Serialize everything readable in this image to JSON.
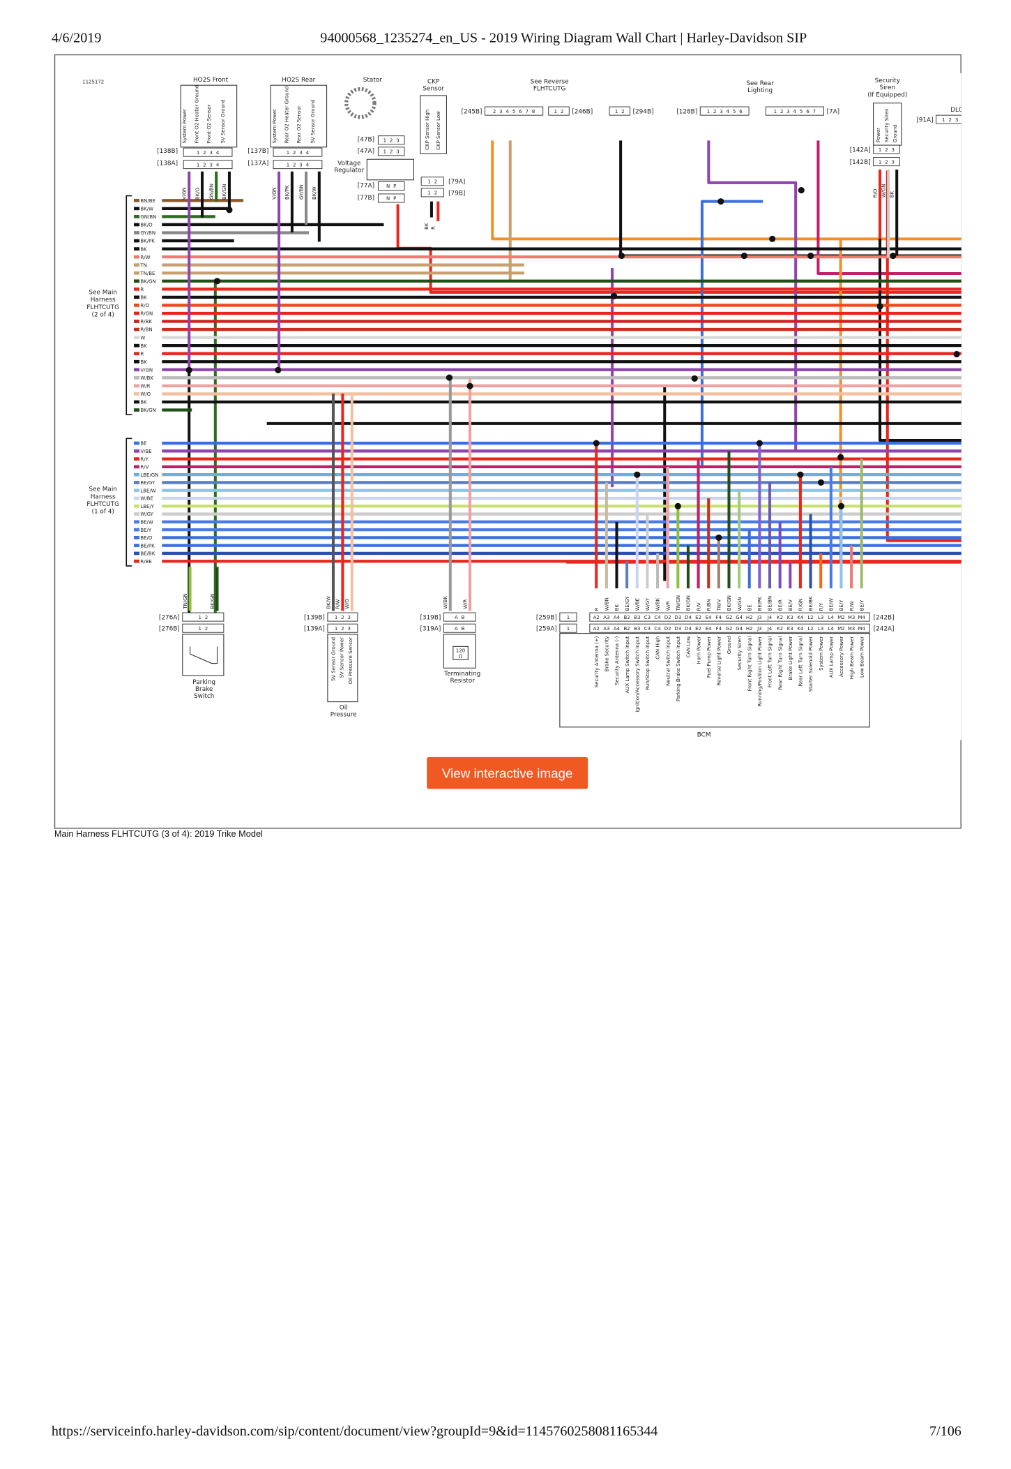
{
  "header": {
    "date": "4/6/2019",
    "title": "94000568_1235274_en_US - 2019 Wiring Diagram Wall Chart | Harley-Davidson SIP"
  },
  "diagram": {
    "id": "1125172",
    "components": [
      {
        "label": [
          "HO2S Front"
        ],
        "pin_functions": [
          "System Power",
          "Front O2 Heater Ground",
          "Front O2 Sensor",
          "5V Sensor Ground"
        ],
        "wires": [
          {
            "label": "V/GN",
            "color": "#8e44ad"
          },
          {
            "label": "BK/O",
            "color": "#111111"
          },
          {
            "label": "GN/BN",
            "color": "#2e6b1e"
          },
          {
            "label": "BK/GN",
            "color": "#111111"
          }
        ]
      },
      {
        "label": [
          "HO2S Rear"
        ],
        "pin_functions": [
          "System Power",
          "Rear O2 Heater Ground",
          "Rear O2 Sensor",
          "5V Sensor Ground"
        ],
        "wires": [
          {
            "label": "V/GN",
            "color": "#8e44ad"
          },
          {
            "label": "BK/PK",
            "color": "#111111"
          },
          {
            "label": "GY/BN",
            "color": "#888888"
          },
          {
            "label": "BK/W",
            "color": "#111111"
          }
        ]
      },
      {
        "label": [
          "Stator"
        ]
      },
      {
        "label": [
          "CKP",
          "Sensor"
        ],
        "pin_functions": [
          "CKP Sensor High",
          "CKP Sensor Low"
        ],
        "wires": [
          {
            "label": "BK",
            "color": "#111111"
          },
          {
            "label": "R",
            "color": "#e8261c"
          }
        ]
      },
      {
        "label": [
          "Voltage",
          "Regulator"
        ]
      },
      {
        "label": [
          "See Reverse",
          "FLHTCUTG"
        ]
      },
      {
        "label": [
          "See Rear",
          "Lighting"
        ]
      },
      {
        "label": [
          "Security",
          "Siren",
          "(If Equipped)"
        ],
        "pin_functions": [
          "Power",
          "Security Siren",
          "Ground"
        ],
        "wires": [
          {
            "label": "R/O",
            "color": "#e8261c"
          },
          {
            "label": "W/GN",
            "color": "#cccccc"
          },
          {
            "label": "BK",
            "color": "#111111"
          }
        ]
      },
      {
        "label": [
          "DLC"
        ]
      },
      {
        "label": [
          "Parking",
          "Brake",
          "Switch"
        ],
        "wires": [
          {
            "label": "TN/GN",
            "color": "#8bbf3c"
          },
          {
            "label": "BK/GN",
            "color": "#1f4f16"
          }
        ]
      },
      {
        "label": [
          "Oil",
          "Pressure"
        ],
        "pin_functions": [
          "5V Sensor Ground",
          "5V Sensor Power",
          "Oil Pressure Sensor"
        ],
        "wires": [
          {
            "label": "BK/W",
            "color": "#555555"
          },
          {
            "label": "R/W",
            "color": "#e8261c"
          },
          {
            "label": "W/O",
            "color": "#f2c0a0"
          }
        ]
      },
      {
        "label": [
          "Terminating",
          "Resistor"
        ],
        "detail": [
          "120",
          "Ω"
        ],
        "wires": [
          {
            "label": "W/BK",
            "color": "#999999"
          },
          {
            "label": "W/R",
            "color": "#f0a0a0"
          }
        ]
      }
    ],
    "connectors": [
      {
        "label": "[138B]",
        "pins": "1 2 3 4"
      },
      {
        "label": "[138A]",
        "pins": "1 2 3 4"
      },
      {
        "label": "[137B]",
        "pins": "1 2 3 4"
      },
      {
        "label": "[137A]",
        "pins": "1 2 3 4"
      },
      {
        "label": "[47B]",
        "pins": "1 2 3"
      },
      {
        "label": "[47A]",
        "pins": "1 2 3"
      },
      {
        "label": "[77A]",
        "pins": "N P"
      },
      {
        "label": "[77B]",
        "pins": "N P"
      },
      {
        "label": "[79A]",
        "pins": "1 2"
      },
      {
        "label": "[79B]",
        "pins": "1 2"
      },
      {
        "label": "[245B]",
        "pins": "2 3 4 5 6 7 8"
      },
      {
        "label": "[246B]",
        "pins": "1 2"
      },
      {
        "label": "[294B]",
        "pins": "1 2"
      },
      {
        "label": "[128B]",
        "pins": "1 2 3 4 5 6"
      },
      {
        "label": "[7A]",
        "pins": "1 2 3 4 5 6 7"
      },
      {
        "label": "[91A]",
        "pins": "1 2 3"
      },
      {
        "label": "[142A]",
        "pins": "1 2 3"
      },
      {
        "label": "[142B]",
        "pins": "1 2 3"
      },
      {
        "label": "[276A]",
        "pins": "1 2"
      },
      {
        "label": "[276B]",
        "pins": "1 2"
      },
      {
        "label": "[139B]",
        "pins": "1 2 3"
      },
      {
        "label": "[139A]",
        "pins": "1 2 3"
      },
      {
        "label": "[319B]",
        "pins": "A B"
      },
      {
        "label": "[319A]",
        "pins": "A B"
      },
      {
        "label": "[259B]",
        "pins": "1"
      },
      {
        "label": "[259A]",
        "pins": "1"
      },
      {
        "label": "[242B]"
      },
      {
        "label": "[242A]"
      }
    ],
    "harness_groups": [
      {
        "label": [
          "See Main",
          "Harness",
          "FLHTCUTG",
          "(2 of 4)"
        ],
        "wires": [
          {
            "label": "BN/BE",
            "color": "#8b5a2b"
          },
          {
            "label": "BK/W",
            "color": "#111111"
          },
          {
            "label": "GN/BN",
            "color": "#2e6b1e"
          },
          {
            "label": "BK/O",
            "color": "#111111"
          },
          {
            "label": "GY/BN",
            "color": "#888888"
          },
          {
            "label": "BK/PK",
            "color": "#111111"
          },
          {
            "label": "BK",
            "color": "#111111"
          },
          {
            "label": "R/W",
            "color": "#f07a70"
          },
          {
            "label": "TN",
            "color": "#c8a070"
          },
          {
            "label": "TN/BE",
            "color": "#c8a070"
          },
          {
            "label": "BK/GN",
            "color": "#1f4f16"
          },
          {
            "label": "R",
            "color": "#e8261c"
          },
          {
            "label": "BK",
            "color": "#111111"
          },
          {
            "label": "R/O",
            "color": "#ee4a1c"
          },
          {
            "label": "R/GN",
            "color": "#e8261c"
          },
          {
            "label": "R/BK",
            "color": "#d0201a"
          },
          {
            "label": "R/BN",
            "color": "#c8301c"
          },
          {
            "label": "W",
            "color": "#d8d8d8"
          },
          {
            "label": "BK",
            "color": "#111111"
          },
          {
            "label": "R",
            "color": "#e8261c"
          },
          {
            "label": "BK",
            "color": "#111111"
          },
          {
            "label": "V/GN",
            "color": "#8e44ad"
          },
          {
            "label": "W/BK",
            "color": "#bbbbbb"
          },
          {
            "label": "W/R",
            "color": "#f0a0a0"
          },
          {
            "label": "W/O",
            "color": "#f2c0a0"
          },
          {
            "label": "BK",
            "color": "#111111"
          },
          {
            "label": "BK/GN",
            "color": "#1f4f16"
          }
        ]
      },
      {
        "label": [
          "See Main",
          "Harness",
          "FLHTCUTG",
          "(1 of 4)"
        ],
        "wires": [
          {
            "label": "BE",
            "color": "#3a6fe0"
          },
          {
            "label": "V/BE",
            "color": "#8e44ad"
          },
          {
            "label": "R/Y",
            "color": "#e8261c"
          },
          {
            "label": "R/V",
            "color": "#c0206a"
          },
          {
            "label": "LBE/GN",
            "color": "#6cb0e0"
          },
          {
            "label": "BE/GY",
            "color": "#5a7fc0"
          },
          {
            "label": "LBE/W",
            "color": "#8cc4ec"
          },
          {
            "label": "W/BE",
            "color": "#c8d4f0"
          },
          {
            "label": "LBE/Y",
            "color": "#c8e070"
          },
          {
            "label": "W/GY",
            "color": "#cccccc"
          },
          {
            "label": "BE/W",
            "color": "#4a7ae8"
          },
          {
            "label": "BE/Y",
            "color": "#4a7ae8"
          },
          {
            "label": "BE/O",
            "color": "#3a6fe0"
          },
          {
            "label": "BE/PK",
            "color": "#3a6fe0"
          },
          {
            "label": "BE/BK",
            "color": "#2a4fb0"
          },
          {
            "label": "R/BE",
            "color": "#e8261c"
          }
        ]
      }
    ],
    "bcm": {
      "label": "BCM",
      "pins": [
        {
          "pin": "A2",
          "wire": "R",
          "function": "Security Antenna (+)",
          "color": "#e8261c"
        },
        {
          "pin": "A3",
          "wire": "W/BN",
          "function": "Brake Security",
          "color": "#c8b8a0"
        },
        {
          "pin": "A4",
          "wire": "BK",
          "function": "Security Antenna (-)",
          "color": "#111111"
        },
        {
          "pin": "B2",
          "wire": "BE/GY",
          "function": "AUX Lamp Switch Input",
          "color": "#5a7fc0"
        },
        {
          "pin": "B3",
          "wire": "W/BE",
          "function": "Ignition/Accessory Switch Input",
          "color": "#c8d4f0"
        },
        {
          "pin": "C3",
          "wire": "W/GY",
          "function": "Run/Stop Switch Input",
          "color": "#cccccc"
        },
        {
          "pin": "C4",
          "wire": "W/BK",
          "function": "CAN High",
          "color": "#bbbbbb"
        },
        {
          "pin": "D2",
          "wire": "W/R",
          "function": "Neutral Switch Input",
          "color": "#f0a0a0"
        },
        {
          "pin": "D3",
          "wire": "TN/GN",
          "function": "Parking Brake Switch Input",
          "color": "#8bbf3c"
        },
        {
          "pin": "D4",
          "wire": "BK/GN",
          "function": "CAN Low",
          "color": "#1f4f16"
        },
        {
          "pin": "E2",
          "wire": "R/V",
          "function": "Horn Power",
          "color": "#c0206a"
        },
        {
          "pin": "E4",
          "wire": "R/BN",
          "function": "Fuel Pump Power",
          "color": "#c8301c"
        },
        {
          "pin": "F4",
          "wire": "TN/V",
          "function": "Reverse Light Power",
          "color": "#a08070"
        },
        {
          "pin": "G2",
          "wire": "BK/GN",
          "function": "Ground",
          "color": "#1f4f16"
        },
        {
          "pin": "G4",
          "wire": "W/GN",
          "function": "Security Siren",
          "color": "#9ccc7c"
        },
        {
          "pin": "H2",
          "wire": "BE",
          "function": "Front Right Turn Signal",
          "color": "#3a6fe0"
        },
        {
          "pin": "J3",
          "wire": "BE/PK",
          "function": "Running/Position Light Power",
          "color": "#8060d0"
        },
        {
          "pin": "J4",
          "wire": "BE/BN",
          "function": "Front Left Turn Signal",
          "color": "#6a5ab0"
        },
        {
          "pin": "K2",
          "wire": "BE/R",
          "function": "Rear Right Turn Signal",
          "color": "#7a4ac0"
        },
        {
          "pin": "K3",
          "wire": "BE/V",
          "function": "Brake Light Power",
          "color": "#8e44ad"
        },
        {
          "pin": "K4",
          "wire": "R/GN",
          "function": "Rear Left Turn Signal",
          "color": "#e8261c"
        },
        {
          "pin": "L2",
          "wire": "BE/BK",
          "function": "Starter Solenoid Power",
          "color": "#2a4fb0"
        },
        {
          "pin": "L3",
          "wire": "R/Y",
          "function": "System Power",
          "color": "#f06a1c"
        },
        {
          "pin": "L4",
          "wire": "BE/W",
          "function": "AUX Lamp Power",
          "color": "#4a7ae8"
        },
        {
          "pin": "M2",
          "wire": "BE/Y",
          "function": "Accessory Power",
          "color": "#8cc4ec"
        },
        {
          "pin": "M3",
          "wire": "R/W",
          "function": "High Beam Power",
          "color": "#f07a70"
        },
        {
          "pin": "M4",
          "wire": "BE/Y",
          "function": "Low Beam Power",
          "color": "#9cbc6c"
        }
      ]
    }
  },
  "button": "View interactive image",
  "caption": "Main Harness FLHTCUTG (3 of 4): 2019 Trike Model",
  "footer": {
    "url": "https://serviceinfo.harley-davidson.com/sip/content/document/view?groupId=9&id=1145760258081165344",
    "page": "7/106"
  }
}
